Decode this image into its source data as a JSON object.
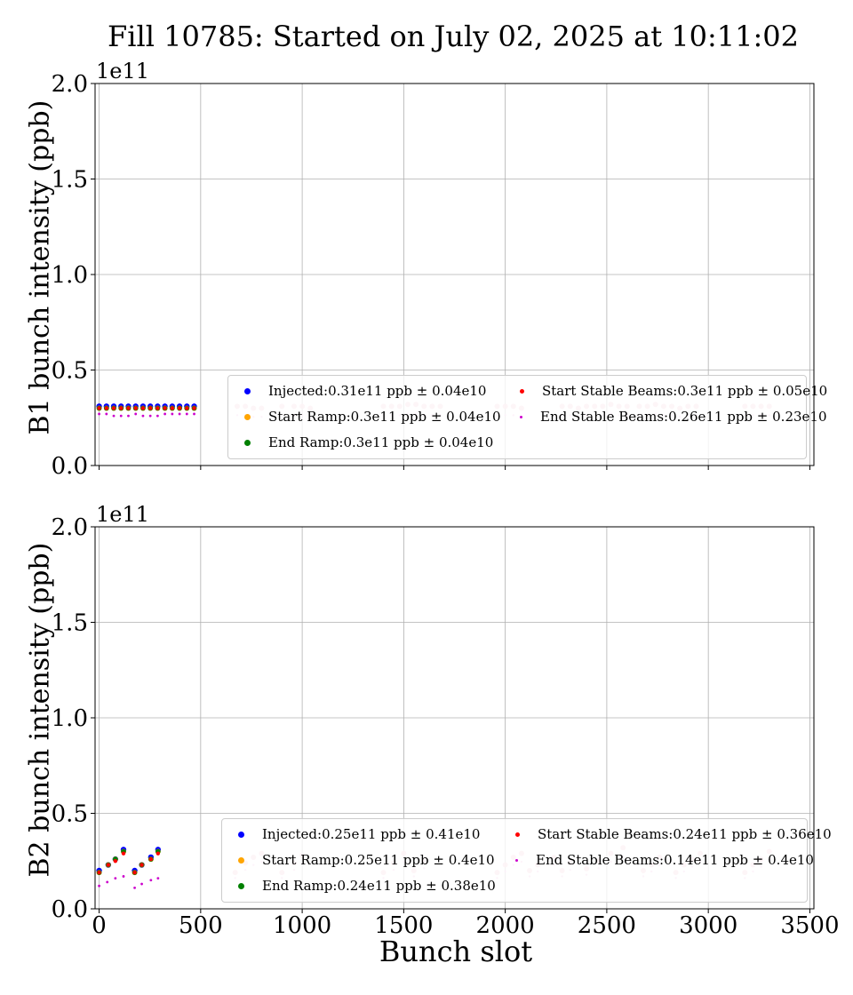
{
  "title": "Fill 10785: Started on July 02, 2025 at 10:11:02",
  "chart_data": [
    {
      "type": "scatter",
      "ylabel": "B1 bunch intensity (ppb)",
      "xlabel": "",
      "y_offset_label": "1e11",
      "xlim": [
        -20,
        3520
      ],
      "ylim": [
        0.0,
        2.0
      ],
      "yticks": [
        "0.0",
        "0.5",
        "1.0",
        "1.5",
        "2.0"
      ],
      "xticks": [
        0,
        500,
        1000,
        1500,
        2000,
        2500,
        3000,
        3500
      ],
      "xtick_labels_shown": false,
      "grid": true,
      "legend_placement": "lower-right",
      "series": [
        {
          "name": "Injected:0.31e11 ppb ± 0.04e10",
          "color": "#0000ff",
          "x": [
            0,
            36,
            72,
            108,
            144,
            180,
            216,
            252,
            288,
            324,
            360,
            396,
            432,
            468
          ],
          "y": [
            0.31,
            0.31,
            0.31,
            0.31,
            0.31,
            0.31,
            0.31,
            0.31,
            0.31,
            0.31,
            0.31,
            0.31,
            0.31,
            0.31
          ]
        },
        {
          "name": "Start Ramp:0.3e11 ppb ± 0.04e10",
          "color": "#ffa500",
          "x": [
            0,
            36,
            72,
            108,
            144,
            180,
            216,
            252,
            288,
            324,
            360,
            396,
            432,
            468
          ],
          "y": [
            0.3,
            0.3,
            0.3,
            0.3,
            0.3,
            0.3,
            0.3,
            0.3,
            0.3,
            0.3,
            0.3,
            0.3,
            0.3,
            0.3
          ]
        },
        {
          "name": "End Ramp:0.3e11 ppb ± 0.04e10",
          "color": "#008000",
          "x": [
            0,
            36,
            72,
            108,
            144,
            180,
            216,
            252,
            288,
            324,
            360,
            396,
            432,
            468
          ],
          "y": [
            0.3,
            0.3,
            0.3,
            0.3,
            0.3,
            0.3,
            0.3,
            0.3,
            0.3,
            0.3,
            0.3,
            0.3,
            0.3,
            0.3
          ]
        },
        {
          "name": "Start Stable Beams:0.3e11 ppb ± 0.05e10",
          "color": "#ff0000",
          "x": [
            0,
            36,
            72,
            108,
            144,
            180,
            216,
            252,
            288,
            324,
            360,
            396,
            432,
            468
          ],
          "y": [
            0.3,
            0.3,
            0.3,
            0.3,
            0.3,
            0.3,
            0.3,
            0.3,
            0.3,
            0.3,
            0.3,
            0.3,
            0.3,
            0.3
          ]
        },
        {
          "name": "End Stable Beams:0.26e11 ppb ± 0.23e10",
          "color": "#cc00cc",
          "x": [
            0,
            36,
            72,
            108,
            144,
            180,
            216,
            252,
            288,
            324,
            360,
            396,
            432,
            468
          ],
          "y": [
            0.27,
            0.27,
            0.26,
            0.26,
            0.26,
            0.27,
            0.26,
            0.26,
            0.26,
            0.27,
            0.27,
            0.27,
            0.27,
            0.27
          ]
        }
      ],
      "faint_points": {
        "x": [
          680,
          720,
          760,
          800,
          900,
          960,
          1000,
          1040,
          1400,
          1440,
          1480,
          1520,
          1560,
          1600,
          1640,
          1680,
          1960,
          2000,
          2040,
          2080,
          2280,
          2320,
          2360,
          2400,
          2440,
          2480,
          2520,
          2560,
          2600,
          2660,
          2700,
          2740,
          2780,
          2820,
          2860,
          2900,
          2940,
          3180,
          3220,
          3260,
          3300
        ],
        "y": [
          0.31,
          0.31,
          0.3,
          0.3,
          0.31,
          0.31,
          0.31,
          0.3,
          0.31,
          0.31,
          0.31,
          0.32,
          0.32,
          0.31,
          0.31,
          0.31,
          0.31,
          0.31,
          0.31,
          0.3,
          0.31,
          0.31,
          0.3,
          0.31,
          0.31,
          0.31,
          0.32,
          0.31,
          0.31,
          0.31,
          0.31,
          0.32,
          0.31,
          0.31,
          0.3,
          0.31,
          0.31,
          0.31,
          0.31,
          0.31,
          0.31
        ]
      }
    },
    {
      "type": "scatter",
      "ylabel": "B2 bunch intensity (ppb)",
      "xlabel": "Bunch slot",
      "y_offset_label": "1e11",
      "xlim": [
        -20,
        3520
      ],
      "ylim": [
        0.0,
        2.0
      ],
      "yticks": [
        "0.0",
        "0.5",
        "1.0",
        "1.5",
        "2.0"
      ],
      "xticks": [
        "0",
        "500",
        "1000",
        "1500",
        "2000",
        "2500",
        "3000",
        "3500"
      ],
      "xtick_values": [
        0,
        500,
        1000,
        1500,
        2000,
        2500,
        3000,
        3500
      ],
      "xtick_labels_shown": true,
      "grid": true,
      "legend_placement": "lower-right",
      "series": [
        {
          "name": "Injected:0.25e11 ppb ± 0.41e10",
          "color": "#0000ff",
          "x": [
            0,
            45,
            80,
            120,
            175,
            210,
            255,
            290
          ],
          "y": [
            0.2,
            0.23,
            0.26,
            0.31,
            0.2,
            0.23,
            0.27,
            0.31
          ]
        },
        {
          "name": "Start Ramp:0.25e11 ppb ± 0.4e10",
          "color": "#ffa500",
          "x": [
            0,
            45,
            80,
            120,
            175,
            210,
            255,
            290
          ],
          "y": [
            0.19,
            0.23,
            0.26,
            0.3,
            0.19,
            0.23,
            0.26,
            0.3
          ]
        },
        {
          "name": "End Ramp:0.24e11 ppb ± 0.38e10",
          "color": "#008000",
          "x": [
            0,
            45,
            80,
            120,
            175,
            210,
            255,
            290
          ],
          "y": [
            0.19,
            0.23,
            0.26,
            0.3,
            0.19,
            0.23,
            0.26,
            0.3
          ]
        },
        {
          "name": "Start Stable Beams:0.24e11 ppb ± 0.36e10",
          "color": "#ff0000",
          "x": [
            0,
            45,
            80,
            120,
            175,
            210,
            255,
            290
          ],
          "y": [
            0.19,
            0.23,
            0.25,
            0.29,
            0.19,
            0.23,
            0.26,
            0.29
          ]
        },
        {
          "name": "End Stable Beams:0.14e11 ppb ± 0.4e10",
          "color": "#cc00cc",
          "x": [
            0,
            40,
            80,
            120,
            175,
            210,
            255,
            290
          ],
          "y": [
            0.12,
            0.14,
            0.16,
            0.17,
            0.11,
            0.13,
            0.15,
            0.16
          ]
        }
      ],
      "faint_points": {
        "x": [
          670,
          720,
          760,
          800,
          900,
          960,
          1000,
          1400,
          1450,
          1500,
          1550,
          1600,
          1960,
          2000,
          2040,
          2080,
          2120,
          2160,
          2240,
          2280,
          2320,
          2400,
          2460,
          2520,
          2580,
          2680,
          2720,
          2760,
          2840,
          2880,
          2920,
          2960,
          3180,
          3220,
          3260,
          3300
        ],
        "y": [
          0.19,
          0.24,
          0.27,
          0.29,
          0.19,
          0.24,
          0.28,
          0.19,
          0.24,
          0.29,
          0.2,
          0.25,
          0.19,
          0.23,
          0.27,
          0.29,
          0.2,
          0.23,
          0.27,
          0.2,
          0.24,
          0.21,
          0.25,
          0.29,
          0.32,
          0.2,
          0.23,
          0.27,
          0.19,
          0.23,
          0.26,
          0.29,
          0.19,
          0.23,
          0.26,
          0.3
        ]
      }
    }
  ]
}
